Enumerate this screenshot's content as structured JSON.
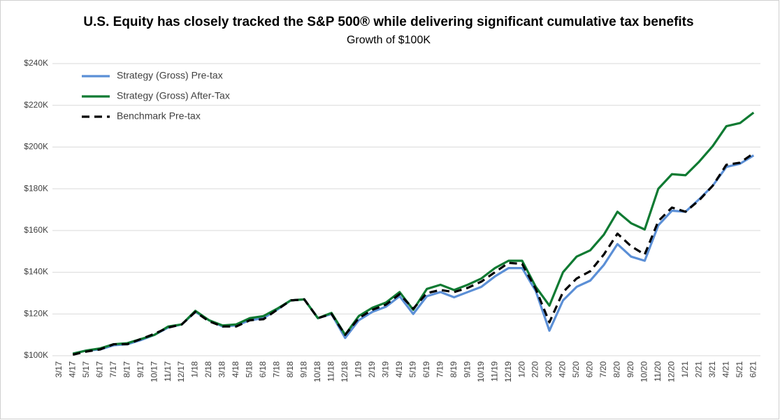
{
  "chart_data": {
    "type": "line",
    "title": "U.S. Equity has closely tracked the S&P 500® while delivering significant cumulative tax benefits",
    "subtitle": "Growth of $100K",
    "categories": [
      "3/17",
      "4/17",
      "5/17",
      "6/17",
      "7/17",
      "8/17",
      "9/17",
      "10/17",
      "11/17",
      "12/17",
      "1/18",
      "2/18",
      "3/18",
      "4/18",
      "5/18",
      "6/18",
      "7/18",
      "8/18",
      "9/18",
      "10/18",
      "11/18",
      "12/18",
      "1/19",
      "2/19",
      "3/19",
      "4/19",
      "5/19",
      "6/19",
      "7/19",
      "8/19",
      "9/19",
      "10/19",
      "11/19",
      "12/19",
      "1/20",
      "2/20",
      "3/20",
      "4/20",
      "5/20",
      "6/20",
      "7/20",
      "8/20",
      "9/20",
      "10/20",
      "11/20",
      "12/20",
      "1/21",
      "2/21",
      "3/21",
      "4/21",
      "5/21",
      "6/21"
    ],
    "series": [
      {
        "name": "Strategy (Gross) Pre-tax",
        "color": "#5b8fd6",
        "linestyle": "solid",
        "values": [
          null,
          101000,
          102500,
          103000,
          105000,
          105500,
          107500,
          110000,
          113500,
          115000,
          121000,
          117000,
          114000,
          114500,
          117000,
          118000,
          122000,
          126500,
          127000,
          118000,
          120000,
          108500,
          117000,
          121000,
          123500,
          128500,
          120000,
          128500,
          130500,
          128000,
          130500,
          133000,
          138000,
          142000,
          142000,
          131000,
          112000,
          126500,
          133000,
          136000,
          143500,
          153500,
          147500,
          145500,
          162500,
          169500,
          169000,
          175000,
          181500,
          190500,
          192000,
          196000
        ]
      },
      {
        "name": "Strategy (Gross) After-Tax",
        "color": "#0f7a32",
        "linestyle": "solid",
        "values": [
          null,
          101000,
          102500,
          103500,
          105500,
          106000,
          108000,
          110000,
          114000,
          115000,
          121500,
          117000,
          114500,
          115000,
          118000,
          119000,
          122500,
          126500,
          127000,
          118000,
          120500,
          110000,
          119000,
          123000,
          125500,
          130500,
          122000,
          132000,
          134000,
          131500,
          134000,
          137000,
          142000,
          145500,
          145500,
          133000,
          124000,
          140000,
          147500,
          150500,
          158000,
          169000,
          163500,
          160500,
          180000,
          187000,
          186500,
          193000,
          200500,
          210000,
          211500,
          216500
        ]
      },
      {
        "name": "Benchmark Pre-tax",
        "color": "#000000",
        "linestyle": "dashed",
        "values": [
          null,
          100500,
          102000,
          103000,
          105500,
          105500,
          108000,
          110500,
          113500,
          115000,
          121000,
          116500,
          114000,
          114000,
          117000,
          117500,
          122000,
          126500,
          127000,
          118000,
          120000,
          110000,
          118000,
          122000,
          124500,
          129500,
          122500,
          130000,
          131500,
          130500,
          132500,
          135500,
          140000,
          144500,
          144000,
          132000,
          116000,
          130500,
          137000,
          140500,
          148500,
          158500,
          152500,
          148500,
          164500,
          171000,
          169000,
          174500,
          181500,
          191500,
          192500,
          197000
        ]
      }
    ],
    "ylim": [
      100000,
      240000
    ],
    "yticks": [
      {
        "value": 100000,
        "label": "$100K"
      },
      {
        "value": 120000,
        "label": "$120K"
      },
      {
        "value": 140000,
        "label": "$140K"
      },
      {
        "value": 160000,
        "label": "$160K"
      },
      {
        "value": 180000,
        "label": "$180K"
      },
      {
        "value": 200000,
        "label": "$200K"
      },
      {
        "value": 220000,
        "label": "$220K"
      },
      {
        "value": 240000,
        "label": "$240K"
      }
    ],
    "grid": true,
    "legend": "upper left"
  }
}
